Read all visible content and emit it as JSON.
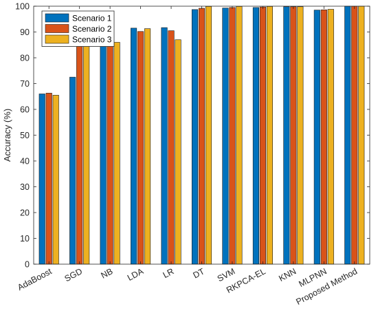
{
  "chart_data": {
    "type": "bar",
    "title": "",
    "xlabel": "",
    "ylabel": "Accuracy (%)",
    "ylim": [
      0,
      100
    ],
    "yticks": [
      0,
      10,
      20,
      30,
      40,
      50,
      60,
      70,
      80,
      90,
      100
    ],
    "categories": [
      "AdaBoost",
      "SGD",
      "NB",
      "LDA",
      "LR",
      "DT",
      "SVM",
      "RKPCA-EL",
      "KNN",
      "MLPNN",
      "Proposed Method"
    ],
    "series": [
      {
        "name": "Scenario 1",
        "color": "#0072BD",
        "values": [
          66.0,
          72.5,
          84.8,
          91.5,
          91.7,
          98.7,
          99.3,
          99.5,
          99.8,
          98.5,
          100.0
        ]
      },
      {
        "name": "Scenario 2",
        "color": "#D95319",
        "values": [
          66.3,
          86.5,
          85.5,
          90.2,
          90.5,
          99.2,
          99.5,
          99.7,
          99.8,
          98.6,
          100.0
        ]
      },
      {
        "name": "Scenario 3",
        "color": "#EDB120",
        "values": [
          65.5,
          85.0,
          86.0,
          91.3,
          87.0,
          99.9,
          99.9,
          99.9,
          99.8,
          98.8,
          100.0
        ]
      }
    ],
    "grid": false,
    "legend_position": "top-left"
  }
}
